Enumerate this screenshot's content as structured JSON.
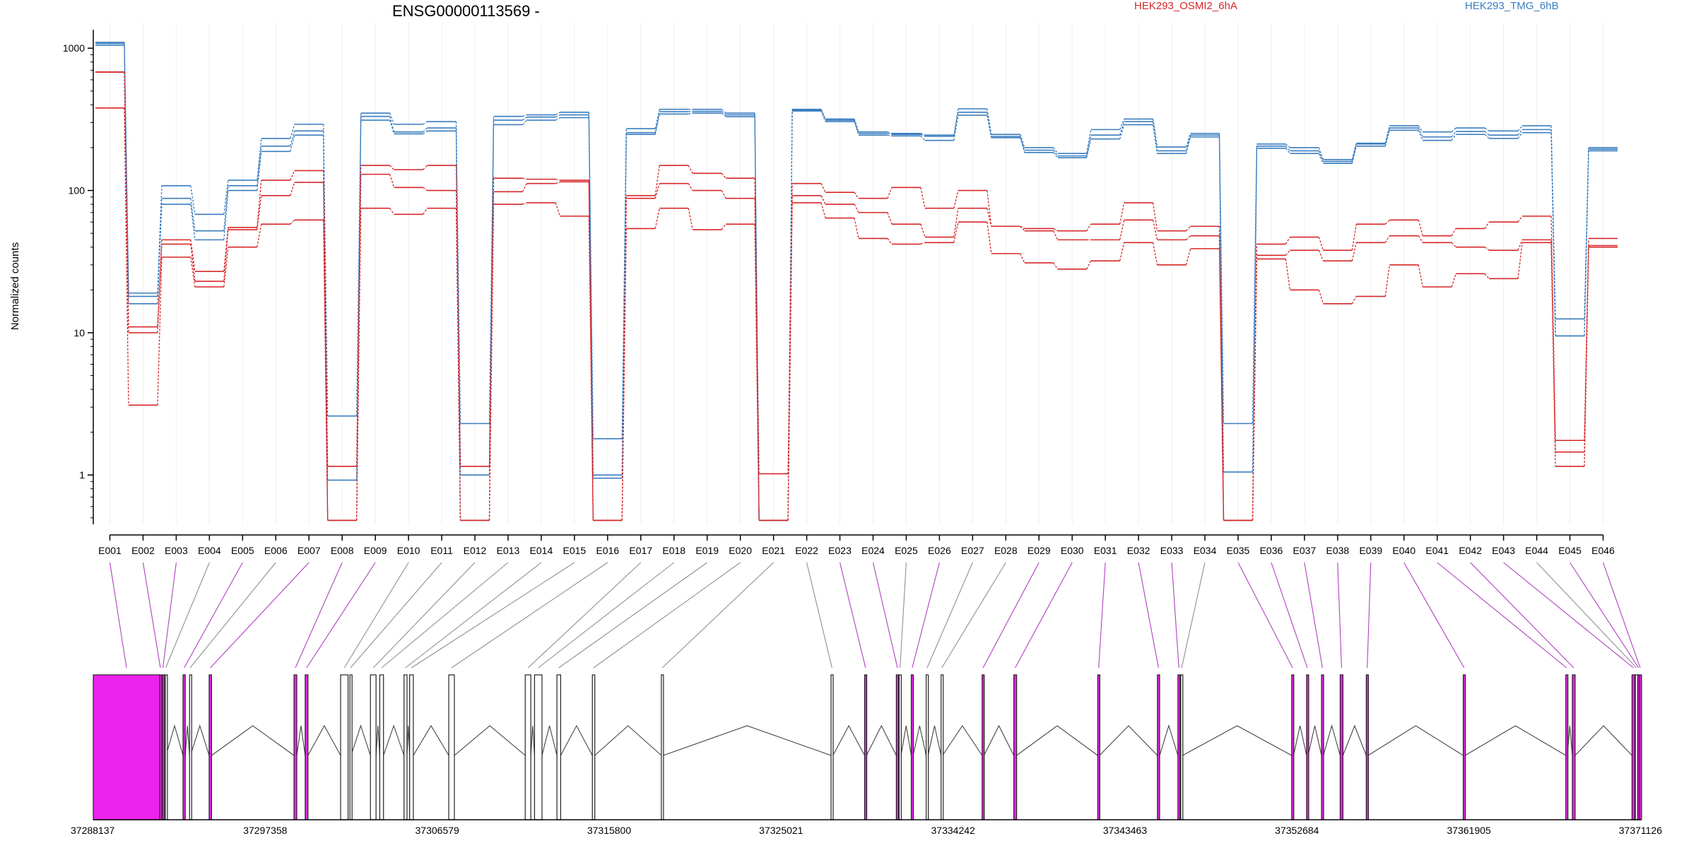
{
  "chart_data": {
    "type": "line",
    "title": "ENSG00000113569 -",
    "ylabel": "Normalized counts",
    "xlabel": "",
    "yscale": "log",
    "ylim": [
      0.45,
      1350
    ],
    "yticks": [
      1,
      10,
      100,
      1000
    ],
    "ytick_labels": [
      "1",
      "10",
      "100",
      "1000"
    ],
    "grid": "vertical per exon",
    "legend_position": "top",
    "legend": [
      {
        "name": "HEK293_OSMI2_6hA",
        "color": "#d62728"
      },
      {
        "name": "HEK293_TMG_6hB",
        "color": "#3a7dbf"
      }
    ],
    "categories": [
      "E001",
      "E002",
      "E003",
      "E004",
      "E005",
      "E006",
      "E007",
      "E008",
      "E009",
      "E010",
      "E011",
      "E012",
      "E013",
      "E014",
      "E015",
      "E016",
      "E017",
      "E018",
      "E019",
      "E020",
      "E021",
      "E022",
      "E023",
      "E024",
      "E025",
      "E026",
      "E027",
      "E028",
      "E029",
      "E030",
      "E031",
      "E032",
      "E033",
      "E034",
      "E035",
      "E036",
      "E037",
      "E038",
      "E039",
      "E040",
      "E041",
      "E042",
      "E043",
      "E044",
      "E045",
      "E046"
    ],
    "series": [
      {
        "group": "HEK293_TMG_6hB",
        "color": "#3a7dbf",
        "values": [
          1100,
          19,
          108,
          68,
          118,
          232,
          292,
          2.6,
          350,
          292,
          305,
          2.3,
          332,
          340,
          355,
          1.8,
          272,
          372,
          372,
          350,
          0.48,
          372,
          318,
          258,
          252,
          245,
          375,
          248,
          200,
          182,
          268,
          318,
          202,
          252,
          2.3,
          212,
          200,
          165,
          215,
          285,
          258,
          275,
          262,
          285,
          12.5,
          200
        ]
      },
      {
        "group": "HEK293_TMG_6hB",
        "color": "#3a7dbf",
        "values": [
          1080,
          18,
          88,
          52,
          108,
          205,
          262,
          0.48,
          332,
          258,
          275,
          1.0,
          312,
          328,
          340,
          1.0,
          255,
          358,
          360,
          340,
          0.48,
          368,
          312,
          252,
          248,
          240,
          355,
          240,
          192,
          175,
          245,
          305,
          190,
          245,
          1.05,
          205,
          190,
          160,
          212,
          275,
          238,
          260,
          245,
          268,
          9.5,
          195
        ]
      },
      {
        "group": "HEK293_TMG_6hB",
        "color": "#3a7dbf",
        "values": [
          1050,
          16,
          80,
          45,
          100,
          188,
          245,
          0.92,
          312,
          250,
          262,
          0.48,
          290,
          312,
          325,
          0.95,
          248,
          345,
          350,
          330,
          0.48,
          362,
          305,
          245,
          242,
          225,
          338,
          235,
          185,
          170,
          230,
          290,
          182,
          238,
          0.48,
          198,
          182,
          155,
          205,
          265,
          225,
          248,
          232,
          255,
          9.5,
          190
        ]
      },
      {
        "group": "HEK293_OSMI2_6hA",
        "color": "#d62728",
        "values": [
          680,
          11,
          45,
          27,
          55,
          118,
          138,
          1.15,
          150,
          140,
          150,
          1.15,
          122,
          120,
          118,
          0.48,
          92,
          150,
          132,
          122,
          1.02,
          112,
          97,
          88,
          105,
          75,
          100,
          56,
          54,
          52,
          58,
          82,
          52,
          56,
          0.48,
          42,
          47,
          38,
          58,
          62,
          48,
          54,
          60,
          66,
          1.75,
          46
        ]
      },
      {
        "group": "HEK293_OSMI2_6hA",
        "color": "#d62728",
        "values": [
          680,
          10,
          42,
          23,
          53,
          92,
          114,
          0.48,
          130,
          105,
          100,
          0.48,
          98,
          112,
          115,
          0.48,
          88,
          112,
          100,
          88,
          0.48,
          92,
          80,
          70,
          58,
          47,
          75,
          56,
          52,
          45,
          45,
          62,
          45,
          48,
          0.48,
          35,
          38,
          32,
          43,
          48,
          43,
          40,
          38,
          45,
          1.45,
          41
        ]
      },
      {
        "group": "HEK293_OSMI2_6hA",
        "color": "#d62728",
        "values": [
          380,
          3.1,
          34,
          21,
          40,
          58,
          62,
          0.48,
          75,
          68,
          75,
          0.48,
          80,
          82,
          66,
          0.48,
          54,
          75,
          53,
          58,
          0.48,
          82,
          64,
          46,
          42,
          43,
          60,
          36,
          31,
          28,
          32,
          43,
          30,
          39,
          0.48,
          33,
          20,
          16,
          18,
          30,
          21,
          26,
          24,
          43,
          1.15,
          40
        ]
      }
    ],
    "gene_model": {
      "start_label": "37288137",
      "end_label": "37371126",
      "coord_range": [
        37288137,
        37371126
      ],
      "coord_ticks": [
        37288137,
        37297358,
        37306579,
        37315800,
        37325021,
        37334242,
        37343463,
        37352684,
        37361905,
        37371126
      ],
      "coord_tick_labels": [
        "37288137",
        "37297358",
        "37306579",
        "37315800",
        "37325021",
        "37334242",
        "37343463",
        "37352684",
        "37361905",
        "37371126"
      ],
      "highlight_color": "#ee22ee",
      "exons": [
        {
          "id": "E001",
          "start": 37288137,
          "end": 37291700,
          "highlight": true
        },
        {
          "id": "E002",
          "start": 37291700,
          "end": 37291770,
          "highlight": true
        },
        {
          "id": "E003",
          "start": 37291840,
          "end": 37291900,
          "highlight": true
        },
        {
          "id": "E004",
          "start": 37292000,
          "end": 37292040,
          "highlight": false
        },
        {
          "id": "E005",
          "start": 37292950,
          "end": 37293070,
          "highlight": true
        },
        {
          "id": "E006",
          "start": 37293300,
          "end": 37293350,
          "highlight": false
        },
        {
          "id": "E007",
          "start": 37294350,
          "end": 37294480,
          "highlight": true
        },
        {
          "id": "E008",
          "start": 37298900,
          "end": 37299050,
          "highlight": true
        },
        {
          "id": "E009",
          "start": 37299500,
          "end": 37299650,
          "highlight": true
        },
        {
          "id": "E010",
          "start": 37301400,
          "end": 37301800,
          "highlight": false
        },
        {
          "id": "E011",
          "start": 37301900,
          "end": 37301960,
          "highlight": false
        },
        {
          "id": "E012",
          "start": 37303000,
          "end": 37303300,
          "highlight": false
        },
        {
          "id": "E013",
          "start": 37303500,
          "end": 37303700,
          "highlight": false
        },
        {
          "id": "E014",
          "start": 37304800,
          "end": 37304960,
          "highlight": false
        },
        {
          "id": "E015",
          "start": 37305100,
          "end": 37305300,
          "highlight": false
        },
        {
          "id": "E016",
          "start": 37307200,
          "end": 37307500,
          "highlight": false
        },
        {
          "id": "E017",
          "start": 37311300,
          "end": 37311600,
          "highlight": false
        },
        {
          "id": "E018",
          "start": 37311800,
          "end": 37312200,
          "highlight": false
        },
        {
          "id": "E019",
          "start": 37313000,
          "end": 37313200,
          "highlight": false
        },
        {
          "id": "E020",
          "start": 37314900,
          "end": 37315030,
          "highlight": false
        },
        {
          "id": "E021",
          "start": 37318600,
          "end": 37318700,
          "highlight": false
        },
        {
          "id": "E022",
          "start": 37327700,
          "end": 37327800,
          "highlight": false
        },
        {
          "id": "E023",
          "start": 37329500,
          "end": 37329600,
          "highlight": true
        },
        {
          "id": "E024",
          "start": 37331200,
          "end": 37331320,
          "highlight": true
        },
        {
          "id": "E025",
          "start": 37331350,
          "end": 37331450,
          "highlight": false
        },
        {
          "id": "E026",
          "start": 37332000,
          "end": 37332100,
          "highlight": true
        },
        {
          "id": "E027",
          "start": 37332800,
          "end": 37332900,
          "highlight": false
        },
        {
          "id": "E028",
          "start": 37333600,
          "end": 37333680,
          "highlight": false
        },
        {
          "id": "E029",
          "start": 37335800,
          "end": 37335900,
          "highlight": true
        },
        {
          "id": "E030",
          "start": 37337500,
          "end": 37337650,
          "highlight": true
        },
        {
          "id": "E031",
          "start": 37342000,
          "end": 37342100,
          "highlight": true
        },
        {
          "id": "E032",
          "start": 37345200,
          "end": 37345320,
          "highlight": true
        },
        {
          "id": "E033",
          "start": 37346300,
          "end": 37346400,
          "highlight": true
        },
        {
          "id": "E034",
          "start": 37346450,
          "end": 37346550,
          "highlight": false
        },
        {
          "id": "E035",
          "start": 37352400,
          "end": 37352500,
          "highlight": true
        },
        {
          "id": "E036",
          "start": 37353200,
          "end": 37353280,
          "highlight": true
        },
        {
          "id": "E037",
          "start": 37354000,
          "end": 37354100,
          "highlight": true
        },
        {
          "id": "E038",
          "start": 37355000,
          "end": 37355150,
          "highlight": true
        },
        {
          "id": "E039",
          "start": 37356400,
          "end": 37356500,
          "highlight": true
        },
        {
          "id": "E040",
          "start": 37361600,
          "end": 37361700,
          "highlight": true
        },
        {
          "id": "E041",
          "start": 37367100,
          "end": 37367180,
          "highlight": true
        },
        {
          "id": "E042",
          "start": 37367450,
          "end": 37367600,
          "highlight": true
        },
        {
          "id": "E043",
          "start": 37370650,
          "end": 37370800,
          "highlight": true
        },
        {
          "id": "E044",
          "start": 37370830,
          "end": 37370950,
          "highlight": false
        },
        {
          "id": "E045",
          "start": 37370960,
          "end": 37371050,
          "highlight": true
        },
        {
          "id": "E046",
          "start": 37371050,
          "end": 37371126,
          "highlight": true
        }
      ]
    }
  }
}
